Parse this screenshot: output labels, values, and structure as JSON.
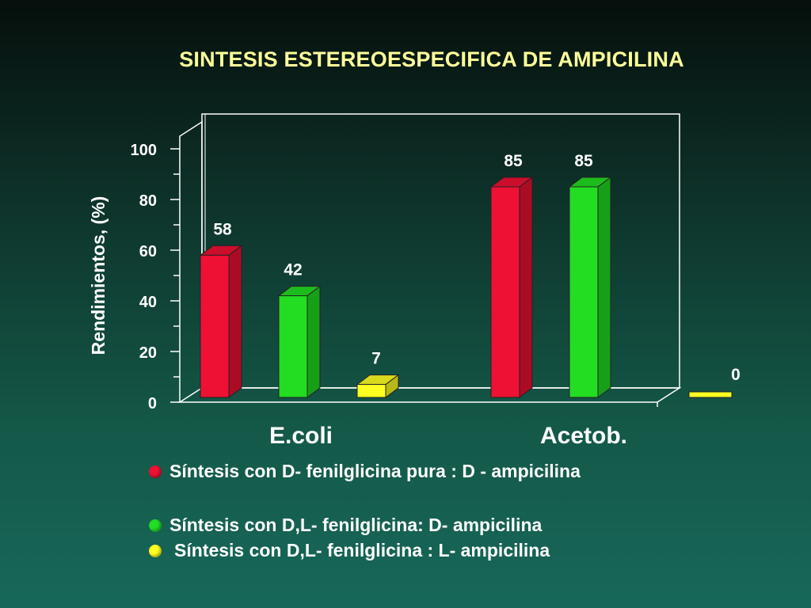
{
  "chart_data": {
    "type": "bar",
    "title": "SINTESIS ESTEREOESPECIFICA DE AMPICILINA",
    "ylabel": "Rendimientos, (%)",
    "ylim": [
      0,
      100
    ],
    "yticks": [
      0,
      20,
      40,
      60,
      80,
      100
    ],
    "categories": [
      "E.coli",
      "Acetob."
    ],
    "series": [
      {
        "name": "Síntesis con D- fenilglicina pura : D - ampicilina",
        "color": "#ee1133",
        "values": [
          58,
          85
        ]
      },
      {
        "name": "Síntesis con D,L- fenilglicina: D- ampicilina",
        "color": "#22dd22",
        "values": [
          42,
          85
        ]
      },
      {
        "name": "Síntesis con D,L- fenilglicina : L- ampicilina",
        "color": "#ffff22",
        "values": [
          7,
          0
        ]
      }
    ],
    "data_labels": true,
    "legend_position": "bottom"
  }
}
